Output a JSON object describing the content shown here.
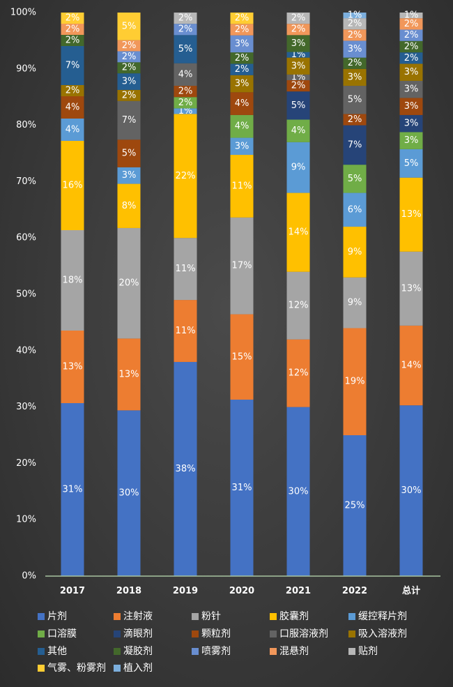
{
  "chart_data": {
    "type": "bar",
    "stacked": true,
    "normalized": true,
    "categories": [
      "2017",
      "2018",
      "2019",
      "2020",
      "2021",
      "2022",
      "总计"
    ],
    "yticks": [
      "0%",
      "10%",
      "20%",
      "30%",
      "40%",
      "50%",
      "60%",
      "70%",
      "80%",
      "90%",
      "100%"
    ],
    "ylim": [
      0,
      100
    ],
    "grid": false,
    "legend_position": "bottom",
    "series": [
      {
        "name": "片剂",
        "color": "#4472c4",
        "values": [
          31,
          30,
          38,
          31,
          30,
          25,
          30
        ]
      },
      {
        "name": "注射液",
        "color": "#ed7d31",
        "values": [
          13,
          13,
          11,
          15,
          12,
          19,
          14
        ]
      },
      {
        "name": "粉针",
        "color": "#a5a5a5",
        "values": [
          18,
          20,
          11,
          17,
          12,
          9,
          13
        ]
      },
      {
        "name": "胶囊剂",
        "color": "#ffc000",
        "values": [
          16,
          8,
          22,
          11,
          14,
          9,
          13
        ]
      },
      {
        "name": "缓控释片剂",
        "color": "#5b9bd5",
        "values": [
          4,
          3,
          1,
          3,
          9,
          6,
          5
        ]
      },
      {
        "name": "口溶膜",
        "color": "#70ad47",
        "values": [
          0,
          0,
          2,
          4,
          4,
          5,
          3
        ]
      },
      {
        "name": "滴眼剂",
        "color": "#264478",
        "values": [
          0,
          0,
          0,
          0,
          5,
          7,
          3
        ]
      },
      {
        "name": "颗粒剂",
        "color": "#9e480e",
        "values": [
          4,
          5,
          2,
          4,
          2,
          2,
          3
        ]
      },
      {
        "name": "口服溶液剂",
        "color": "#636363",
        "values": [
          0,
          7,
          4,
          0,
          1,
          5,
          3
        ]
      },
      {
        "name": "吸入溶液剂",
        "color": "#997300",
        "values": [
          2,
          2,
          0,
          3,
          3,
          3,
          3
        ]
      },
      {
        "name": "其他",
        "color": "#255e91",
        "values": [
          7,
          3,
          5,
          2,
          1,
          0,
          2
        ]
      },
      {
        "name": "凝胶剂",
        "color": "#43682b",
        "values": [
          2,
          2,
          0,
          2,
          3,
          2,
          2
        ]
      },
      {
        "name": "喷雾剂",
        "color": "#698ed0",
        "values": [
          0,
          2,
          2,
          3,
          0,
          3,
          2
        ]
      },
      {
        "name": "混悬剂",
        "color": "#f1975a",
        "values": [
          2,
          2,
          0,
          2,
          2,
          2,
          2
        ]
      },
      {
        "name": "贴剂",
        "color": "#b7b7b7",
        "values": [
          0,
          0,
          2,
          0,
          2,
          2,
          1
        ]
      },
      {
        "name": "气雾、粉雾剂",
        "color": "#ffcd33",
        "values": [
          2,
          5,
          0,
          2,
          0,
          0,
          0
        ]
      },
      {
        "name": "植入剂",
        "color": "#7cafdd",
        "values": [
          0,
          0,
          0,
          0,
          0,
          1,
          0
        ]
      }
    ]
  }
}
